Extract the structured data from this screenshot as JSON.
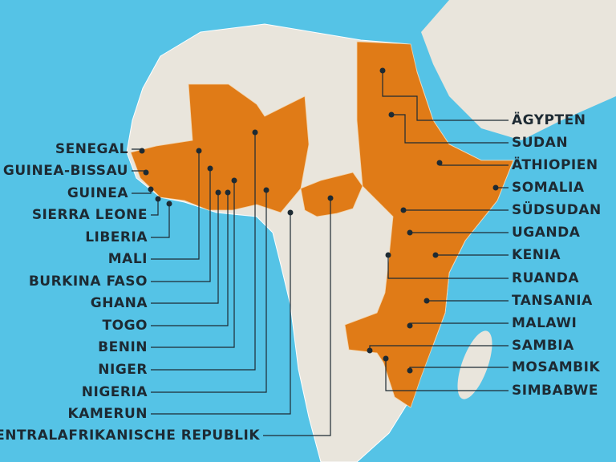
{
  "labels_left": [
    "SENEGAL",
    "GUINEA-BISSAU",
    "GUINEA",
    "SIERRA LEONE",
    "LIBERIA",
    "MALI",
    "BURKINA FASO",
    "GHANA",
    "TOGO",
    "BENIN",
    "NIGER",
    "NIGERIA",
    "KAMERUN",
    "ZENTRALAFRIKANISCHE REPUBLIK"
  ],
  "labels_right": [
    "ÄGYPTEN",
    "SUDAN",
    "ÄTHIOPIEN",
    "SOMALIA",
    "SÜDSUDAN",
    "UGANDA",
    "KENIA",
    "RUANDA",
    "TANSANIA",
    "MALAWI",
    "SAMBIA",
    "MOSAMBIK",
    "SIMBABWE"
  ]
}
